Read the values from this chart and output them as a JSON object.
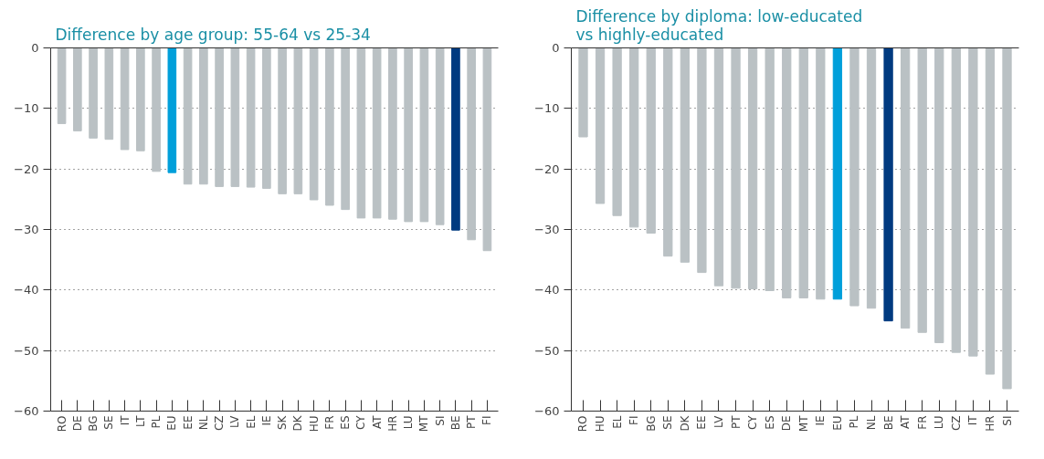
{
  "chart_data": [
    {
      "type": "bar",
      "title": "Difference by age group: 55-64 vs 25-34",
      "categories": [
        "RO",
        "DE",
        "BG",
        "SE",
        "IT",
        "LT",
        "PL",
        "EU",
        "EE",
        "NL",
        "CZ",
        "LV",
        "EL",
        "IE",
        "SK",
        "DK",
        "HU",
        "FR",
        "ES",
        "CY",
        "AT",
        "HR",
        "LU",
        "MT",
        "SI",
        "BE",
        "PT",
        "FI"
      ],
      "values": [
        -12.5,
        -13.7,
        -14.9,
        -15.1,
        -16.8,
        -17.0,
        -20.4,
        -20.6,
        -22.5,
        -22.5,
        -22.9,
        -22.9,
        -23.0,
        -23.2,
        -24.1,
        -24.1,
        -25.1,
        -26.0,
        -26.7,
        -28.1,
        -28.1,
        -28.3,
        -28.7,
        -28.7,
        -29.2,
        -30.1,
        -31.7,
        -33.5
      ],
      "colors": [
        "#bac1c4",
        "#bac1c4",
        "#bac1c4",
        "#bac1c4",
        "#bac1c4",
        "#bac1c4",
        "#bac1c4",
        "#009fda",
        "#bac1c4",
        "#bac1c4",
        "#bac1c4",
        "#bac1c4",
        "#bac1c4",
        "#bac1c4",
        "#bac1c4",
        "#bac1c4",
        "#bac1c4",
        "#bac1c4",
        "#bac1c4",
        "#bac1c4",
        "#bac1c4",
        "#bac1c4",
        "#bac1c4",
        "#bac1c4",
        "#bac1c4",
        "#003a80",
        "#bac1c4",
        "#bac1c4"
      ],
      "ylim": [
        -60,
        0
      ],
      "yticks": [
        {
          "value": 0,
          "label": "0"
        },
        {
          "value": -10,
          "label": "−10"
        },
        {
          "value": -20,
          "label": "−20"
        },
        {
          "value": -30,
          "label": "−30"
        },
        {
          "value": -40,
          "label": "−40"
        },
        {
          "value": -50,
          "label": "−50"
        },
        {
          "value": -60,
          "label": "−60"
        }
      ],
      "grid": "y"
    },
    {
      "type": "bar",
      "title": "Difference by diploma: low-educated\nvs highly-educated",
      "categories": [
        "RO",
        "HU",
        "EL",
        "FI",
        "BG",
        "SE",
        "DK",
        "EE",
        "LV",
        "PT",
        "CY",
        "ES",
        "DE",
        "MT",
        "IE",
        "EU",
        "PL",
        "NL",
        "BE",
        "AT",
        "FR",
        "LU",
        "CZ",
        "IT",
        "HR",
        "SI"
      ],
      "values": [
        -14.7,
        -25.7,
        -27.7,
        -29.6,
        -30.6,
        -34.4,
        -35.4,
        -37.1,
        -39.3,
        -39.7,
        -39.8,
        -40.1,
        -41.3,
        -41.3,
        -41.5,
        -41.5,
        -42.6,
        -43.0,
        -45.1,
        -46.3,
        -47.0,
        -48.7,
        -50.3,
        -50.9,
        -53.9,
        -56.3
      ],
      "colors": [
        "#bac1c4",
        "#bac1c4",
        "#bac1c4",
        "#bac1c4",
        "#bac1c4",
        "#bac1c4",
        "#bac1c4",
        "#bac1c4",
        "#bac1c4",
        "#bac1c4",
        "#bac1c4",
        "#bac1c4",
        "#bac1c4",
        "#bac1c4",
        "#bac1c4",
        "#009fda",
        "#bac1c4",
        "#bac1c4",
        "#003a80",
        "#bac1c4",
        "#bac1c4",
        "#bac1c4",
        "#bac1c4",
        "#bac1c4",
        "#bac1c4",
        "#bac1c4"
      ],
      "ylim": [
        -60,
        0
      ],
      "yticks": [
        {
          "value": 0,
          "label": "0"
        },
        {
          "value": -10,
          "label": "−10"
        },
        {
          "value": -20,
          "label": "−20"
        },
        {
          "value": -30,
          "label": "−30"
        },
        {
          "value": -40,
          "label": "−40"
        },
        {
          "value": -50,
          "label": "−50"
        },
        {
          "value": -60,
          "label": "−60"
        }
      ],
      "grid": "y"
    }
  ]
}
